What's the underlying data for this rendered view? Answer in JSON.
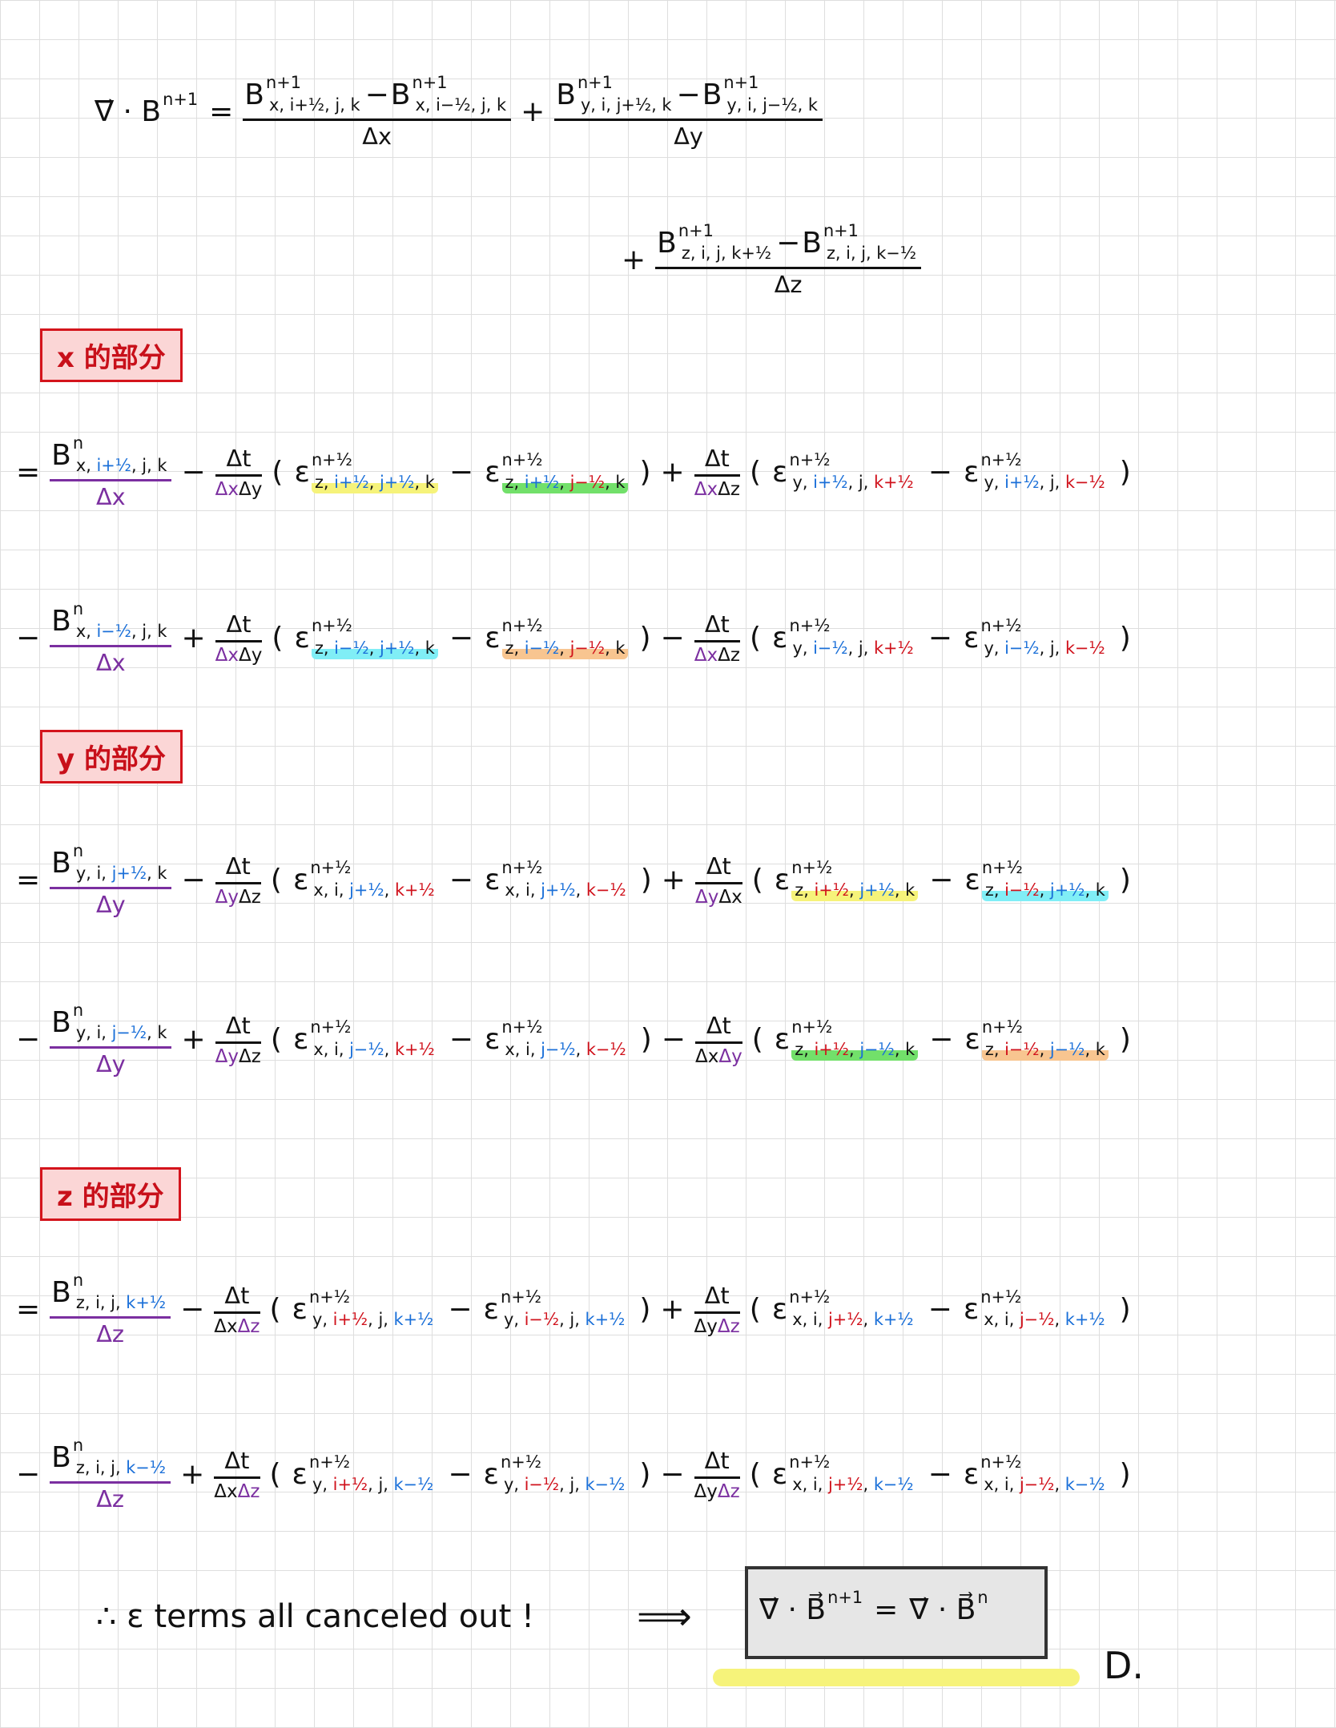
{
  "equation_header": {
    "line_1": [
      {
        "t": "sym",
        "base": "∇⃗ · B",
        "sup": "n+1"
      },
      "=",
      {
        "t": "frac",
        "num": [
          {
            "t": "sym",
            "base": "B",
            "sup": "n+1",
            "sub": [
              "x, i+½, j, k"
            ]
          },
          "−",
          {
            "t": "sym",
            "base": "B",
            "sup": "n+1",
            "sub": [
              "x, i−½, j, k"
            ]
          }
        ],
        "den": [
          "Δx"
        ]
      },
      "+",
      {
        "t": "frac",
        "num": [
          {
            "t": "sym",
            "base": "B",
            "sup": "n+1",
            "sub": [
              "y, i, j+½, k"
            ]
          },
          "−",
          {
            "t": "sym",
            "base": "B",
            "sup": "n+1",
            "sub": [
              "y, i, j−½, k"
            ]
          }
        ],
        "den": [
          "Δy"
        ]
      }
    ],
    "line_2": [
      "+",
      {
        "t": "frac",
        "num": [
          {
            "t": "sym",
            "base": "B",
            "sup": "n+1",
            "sub": [
              "z, i, j, k+½"
            ]
          },
          "−",
          {
            "t": "sym",
            "base": "B",
            "sup": "n+1",
            "sub": [
              "z, i, j, k−½"
            ]
          }
        ],
        "den": [
          "Δz"
        ]
      }
    ]
  },
  "sections": [
    {
      "label": "x 的部分",
      "lines": [
        [
          "=",
          {
            "t": "frac",
            "num": [
              {
                "t": "sym",
                "base": "B",
                "sup": "n",
                "sub": [
                  "x, ",
                  [
                    "i+½",
                    "blue"
                  ],
                  ", j, k"
                ]
              }
            ],
            "den": [
              [
                "Δx",
                "purple"
              ]
            ],
            "bar": "purple"
          },
          "−",
          {
            "t": "frac",
            "small": true,
            "num": [
              "Δt"
            ],
            "den": [
              [
                "Δx",
                "purple"
              ],
              "Δy"
            ]
          },
          "(",
          {
            "t": "sym",
            "base": "ε",
            "sup": "n+½",
            "sub": [
              "z, ",
              [
                "i+½",
                "blue"
              ],
              ", ",
              [
                "j+½",
                "blue"
              ],
              ", k"
            ],
            "hl": "yellow"
          },
          "−",
          {
            "t": "sym",
            "base": "ε",
            "sup": "n+½",
            "sub": [
              "z, ",
              [
                "i+½",
                "blue"
              ],
              ", ",
              [
                "j−½",
                "red"
              ],
              ", k"
            ],
            "hl": "green"
          },
          ")",
          "+",
          {
            "t": "frac",
            "small": true,
            "num": [
              "Δt"
            ],
            "den": [
              [
                "Δx",
                "purple"
              ],
              "Δz"
            ]
          },
          "(",
          {
            "t": "sym",
            "base": "ε",
            "sup": "n+½",
            "sub": [
              "y, ",
              [
                "i+½",
                "blue"
              ],
              ", j, ",
              [
                "k+½",
                "red"
              ]
            ]
          },
          "−",
          {
            "t": "sym",
            "base": "ε",
            "sup": "n+½",
            "sub": [
              "y, ",
              [
                "i+½",
                "blue"
              ],
              ", j, ",
              [
                "k−½",
                "red"
              ]
            ]
          },
          ")"
        ],
        [
          "−",
          {
            "t": "frac",
            "num": [
              {
                "t": "sym",
                "base": "B",
                "sup": "n",
                "sub": [
                  "x, ",
                  [
                    "i−½",
                    "blue"
                  ],
                  ", j, k"
                ]
              }
            ],
            "den": [
              [
                "Δx",
                "purple"
              ]
            ],
            "bar": "purple"
          },
          "+",
          {
            "t": "frac",
            "small": true,
            "num": [
              "Δt"
            ],
            "den": [
              [
                "Δx",
                "purple"
              ],
              "Δy"
            ]
          },
          "(",
          {
            "t": "sym",
            "base": "ε",
            "sup": "n+½",
            "sub": [
              "z, ",
              [
                "i−½",
                "blue"
              ],
              ", ",
              [
                "j+½",
                "blue"
              ],
              ", k"
            ],
            "hl": "cyan"
          },
          "−",
          {
            "t": "sym",
            "base": "ε",
            "sup": "n+½",
            "sub": [
              "z, ",
              [
                "i−½",
                "blue"
              ],
              ", ",
              [
                "j−½",
                "red"
              ],
              ", k"
            ],
            "hl": "orange"
          },
          ")",
          "−",
          {
            "t": "frac",
            "small": true,
            "num": [
              "Δt"
            ],
            "den": [
              [
                "Δx",
                "purple"
              ],
              "Δz"
            ]
          },
          "(",
          {
            "t": "sym",
            "base": "ε",
            "sup": "n+½",
            "sub": [
              "y, ",
              [
                "i−½",
                "blue"
              ],
              ", j, ",
              [
                "k+½",
                "red"
              ]
            ]
          },
          "−",
          {
            "t": "sym",
            "base": "ε",
            "sup": "n+½",
            "sub": [
              "y, ",
              [
                "i−½",
                "blue"
              ],
              ", j, ",
              [
                "k−½",
                "red"
              ]
            ]
          },
          ")"
        ]
      ]
    },
    {
      "label": "y 的部分",
      "lines": [
        [
          "=",
          {
            "t": "frac",
            "num": [
              {
                "t": "sym",
                "base": "B",
                "sup": "n",
                "sub": [
                  "y, i, ",
                  [
                    "j+½",
                    "blue"
                  ],
                  ", k"
                ]
              }
            ],
            "den": [
              [
                "Δy",
                "purple"
              ]
            ],
            "bar": "purple"
          },
          "−",
          {
            "t": "frac",
            "small": true,
            "num": [
              "Δt"
            ],
            "den": [
              [
                "Δy",
                "purple"
              ],
              "Δz"
            ]
          },
          "(",
          {
            "t": "sym",
            "base": "ε",
            "sup": "n+½",
            "sub": [
              "x, i, ",
              [
                "j+½",
                "blue"
              ],
              ", ",
              [
                "k+½",
                "red"
              ]
            ]
          },
          "−",
          {
            "t": "sym",
            "base": "ε",
            "sup": "n+½",
            "sub": [
              "x, i, ",
              [
                "j+½",
                "blue"
              ],
              ", ",
              [
                "k−½",
                "red"
              ]
            ]
          },
          ")",
          "+",
          {
            "t": "frac",
            "small": true,
            "num": [
              "Δt"
            ],
            "den": [
              [
                "Δy",
                "purple"
              ],
              "Δx"
            ]
          },
          "(",
          {
            "t": "sym",
            "base": "ε",
            "sup": "n+½",
            "sub": [
              "z, ",
              [
                "i+½",
                "red"
              ],
              ", ",
              [
                "j+½",
                "blue"
              ],
              ", k"
            ],
            "hl": "yellow"
          },
          "−",
          {
            "t": "sym",
            "base": "ε",
            "sup": "n+½",
            "sub": [
              "z, ",
              [
                "i−½",
                "red"
              ],
              ", ",
              [
                "j+½",
                "blue"
              ],
              ", k"
            ],
            "hl": "cyan"
          },
          ")"
        ],
        [
          "−",
          {
            "t": "frac",
            "num": [
              {
                "t": "sym",
                "base": "B",
                "sup": "n",
                "sub": [
                  "y, i, ",
                  [
                    "j−½",
                    "blue"
                  ],
                  ", k"
                ]
              }
            ],
            "den": [
              [
                "Δy",
                "purple"
              ]
            ],
            "bar": "purple"
          },
          "+",
          {
            "t": "frac",
            "small": true,
            "num": [
              "Δt"
            ],
            "den": [
              [
                "Δy",
                "purple"
              ],
              "Δz"
            ]
          },
          "(",
          {
            "t": "sym",
            "base": "ε",
            "sup": "n+½",
            "sub": [
              "x, i, ",
              [
                "j−½",
                "blue"
              ],
              ", ",
              [
                "k+½",
                "red"
              ]
            ]
          },
          "−",
          {
            "t": "sym",
            "base": "ε",
            "sup": "n+½",
            "sub": [
              "x, i, ",
              [
                "j−½",
                "blue"
              ],
              ", ",
              [
                "k−½",
                "red"
              ]
            ]
          },
          ")",
          "−",
          {
            "t": "frac",
            "small": true,
            "num": [
              "Δt"
            ],
            "den": [
              "Δx",
              [
                "Δy",
                "purple"
              ]
            ]
          },
          "(",
          {
            "t": "sym",
            "base": "ε",
            "sup": "n+½",
            "sub": [
              "z, ",
              [
                "i+½",
                "red"
              ],
              ", ",
              [
                "j−½",
                "blue"
              ],
              ", k"
            ],
            "hl": "green"
          },
          "−",
          {
            "t": "sym",
            "base": "ε",
            "sup": "n+½",
            "sub": [
              "z, ",
              [
                "i−½",
                "red"
              ],
              ", ",
              [
                "j−½",
                "blue"
              ],
              ", k"
            ],
            "hl": "orange"
          },
          ")"
        ]
      ]
    },
    {
      "label": "z 的部分",
      "lines": [
        [
          "=",
          {
            "t": "frac",
            "num": [
              {
                "t": "sym",
                "base": "B",
                "sup": "n",
                "sub": [
                  "z, i, j, ",
                  [
                    "k+½",
                    "blue"
                  ]
                ]
              }
            ],
            "den": [
              [
                "Δz",
                "purple"
              ]
            ],
            "bar": "purple"
          },
          "−",
          {
            "t": "frac",
            "small": true,
            "num": [
              "Δt"
            ],
            "den": [
              "Δx",
              [
                "Δz",
                "purple"
              ]
            ]
          },
          "(",
          {
            "t": "sym",
            "base": "ε",
            "sup": "n+½",
            "sub": [
              "y, ",
              [
                "i+½",
                "red"
              ],
              ", j, ",
              [
                "k+½",
                "blue"
              ]
            ]
          },
          "−",
          {
            "t": "sym",
            "base": "ε",
            "sup": "n+½",
            "sub": [
              "y, ",
              [
                "i−½",
                "red"
              ],
              ", j, ",
              [
                "k+½",
                "blue"
              ]
            ]
          },
          ")",
          "+",
          {
            "t": "frac",
            "small": true,
            "num": [
              "Δt"
            ],
            "den": [
              "Δy",
              [
                "Δz",
                "purple"
              ]
            ]
          },
          "(",
          {
            "t": "sym",
            "base": "ε",
            "sup": "n+½",
            "sub": [
              "x, i, ",
              [
                "j+½",
                "red"
              ],
              ", ",
              [
                "k+½",
                "blue"
              ]
            ]
          },
          "−",
          {
            "t": "sym",
            "base": "ε",
            "sup": "n+½",
            "sub": [
              "x, i, ",
              [
                "j−½",
                "red"
              ],
              ", ",
              [
                "k+½",
                "blue"
              ]
            ]
          },
          ")"
        ],
        [
          "−",
          {
            "t": "frac",
            "num": [
              {
                "t": "sym",
                "base": "B",
                "sup": "n",
                "sub": [
                  "z, i, j, ",
                  [
                    "k−½",
                    "blue"
                  ]
                ]
              }
            ],
            "den": [
              [
                "Δz",
                "purple"
              ]
            ],
            "bar": "purple"
          },
          "+",
          {
            "t": "frac",
            "small": true,
            "num": [
              "Δt"
            ],
            "den": [
              "Δx",
              [
                "Δz",
                "purple"
              ]
            ]
          },
          "(",
          {
            "t": "sym",
            "base": "ε",
            "sup": "n+½",
            "sub": [
              "y, ",
              [
                "i+½",
                "red"
              ],
              ", j, ",
              [
                "k−½",
                "blue"
              ]
            ]
          },
          "−",
          {
            "t": "sym",
            "base": "ε",
            "sup": "n+½",
            "sub": [
              "y, ",
              [
                "i−½",
                "red"
              ],
              ", j, ",
              [
                "k−½",
                "blue"
              ]
            ]
          },
          ")",
          "−",
          {
            "t": "frac",
            "small": true,
            "num": [
              "Δt"
            ],
            "den": [
              "Δy",
              [
                "Δz",
                "purple"
              ]
            ]
          },
          "(",
          {
            "t": "sym",
            "base": "ε",
            "sup": "n+½",
            "sub": [
              "x, i, ",
              [
                "j+½",
                "red"
              ],
              ", ",
              [
                "k−½",
                "blue"
              ]
            ]
          },
          "−",
          {
            "t": "sym",
            "base": "ε",
            "sup": "n+½",
            "sub": [
              "x, i, ",
              [
                "j−½",
                "red"
              ],
              ", ",
              [
                "k−½",
                "blue"
              ]
            ]
          },
          ")"
        ]
      ]
    }
  ],
  "conclusion": {
    "text": "∴ ε terms all canceled out !",
    "arrow": "⟹",
    "result": [
      {
        "t": "sym",
        "base": "∇⃗ · B⃗",
        "sup": "n+1"
      },
      "=",
      {
        "t": "sym",
        "base": "∇⃗ · B⃗",
        "sup": "n"
      }
    ],
    "mark": "D."
  }
}
